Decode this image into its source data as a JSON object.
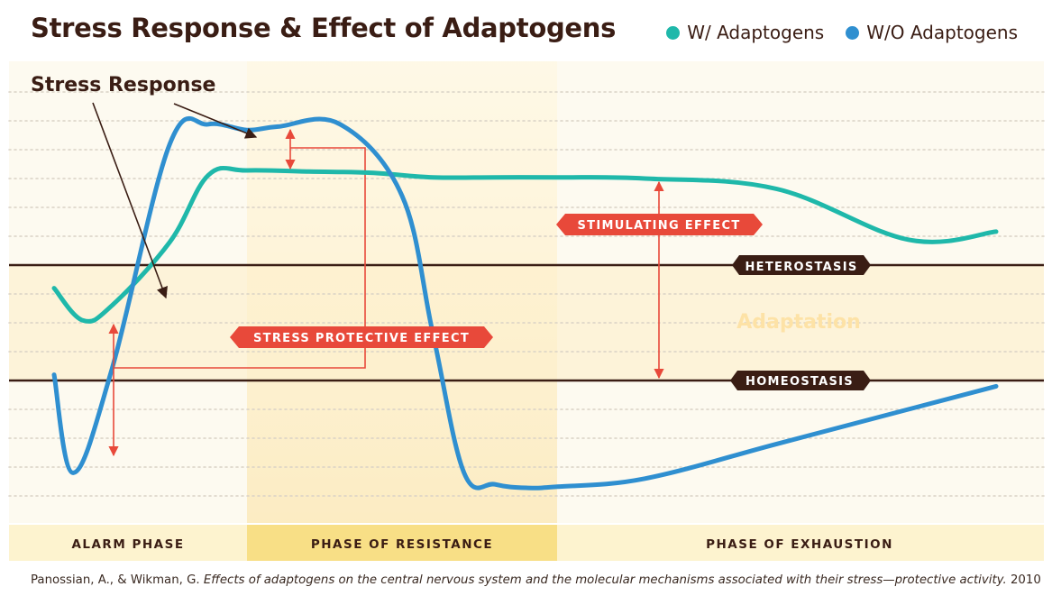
{
  "title": "Stress Response & Effect of Adaptogens",
  "legend": [
    {
      "label": "W/ Adaptogens",
      "color": "#1fb8aa"
    },
    {
      "label": "W/O Adaptogens",
      "color": "#2f8fd0"
    }
  ],
  "annotations": {
    "stress_response": "Stress Response",
    "stimulating_effect": "STIMULATING EFFECT",
    "stress_protective_effect": "STRESS PROTECTIVE EFFECT",
    "heterostasis": "HETEROSTASIS",
    "homeostasis": "HOMEOSTASIS",
    "adaptation": "Adaptation"
  },
  "phases": [
    {
      "label": "ALARM PHASE"
    },
    {
      "label": "PHASE OF RESISTANCE"
    },
    {
      "label": "PHASE OF EXHAUSTION"
    }
  ],
  "caption": {
    "authors": "Panossian, A., & Wikman, G. ",
    "title": "Effects of adaptogens on the central nervous system and the molecular mechanisms associated with their stress—protective activity.",
    "year": " 2010"
  },
  "colors": {
    "arrow": "#e8493a",
    "dark": "#3a1d14",
    "adaptation_text": "#fde7b2"
  },
  "chart_data": {
    "type": "line",
    "x_unit": "phase",
    "y_levels": {
      "heterostasis": 0,
      "homeostasis": -1
    },
    "series": [
      {
        "name": "W/ Adaptogens",
        "x": [
          0.0,
          0.15,
          0.3,
          0.6,
          0.8,
          1.0,
          1.2,
          1.4,
          1.6,
          1.8,
          2.0,
          2.2,
          2.5,
          2.8,
          3.0
        ],
        "y": [
          -0.2,
          -0.48,
          -0.35,
          0.2,
          0.78,
          0.82,
          0.81,
          0.8,
          0.76,
          0.76,
          0.76,
          0.75,
          0.66,
          0.22,
          0.29
        ]
      },
      {
        "name": "W/O Adaptogens",
        "x": [
          0.0,
          0.1,
          0.3,
          0.6,
          0.8,
          1.0,
          1.1,
          1.3,
          1.5,
          1.6,
          1.7,
          1.8,
          1.9,
          2.0,
          2.2,
          2.5,
          2.8,
          3.0
        ],
        "y": [
          -0.95,
          -1.8,
          -0.9,
          1.05,
          1.22,
          1.17,
          1.2,
          1.22,
          0.6,
          -0.6,
          -1.8,
          -1.9,
          -1.93,
          -1.92,
          -1.85,
          -1.55,
          -1.25,
          -1.05
        ]
      }
    ]
  }
}
